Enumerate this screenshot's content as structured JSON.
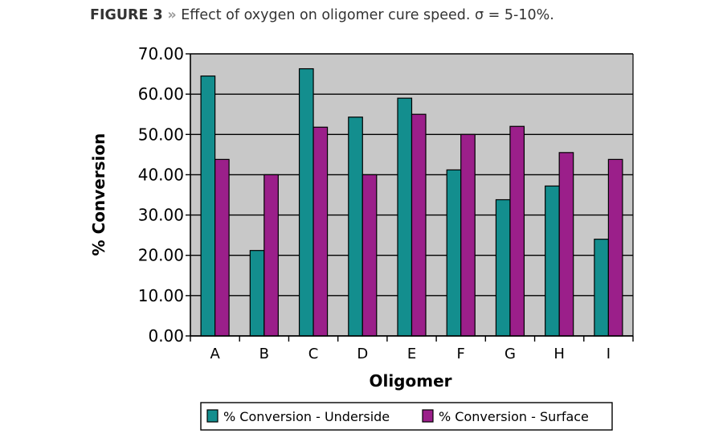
{
  "figure": {
    "label": "FIGURE 3",
    "separator": "»",
    "caption": "Effect of oxygen on oligomer cure speed. σ = 5-10%."
  },
  "chart_data": {
    "type": "bar",
    "categories": [
      "A",
      "B",
      "C",
      "D",
      "E",
      "F",
      "G",
      "H",
      "I"
    ],
    "series": [
      {
        "name": "% Conversion - Underside",
        "color": "#138e8e",
        "values": [
          64.5,
          21.2,
          66.3,
          54.3,
          59.0,
          41.2,
          33.8,
          37.2,
          24.0
        ]
      },
      {
        "name": "% Conversion - Surface",
        "color": "#9b1f8a",
        "values": [
          43.8,
          40.0,
          51.8,
          40.0,
          55.0,
          50.0,
          52.0,
          45.5,
          43.8
        ]
      }
    ],
    "xlabel": "Oligomer",
    "ylabel": "% Conversion",
    "ylim": [
      0,
      70
    ],
    "yticks": [
      "0.00",
      "10.00",
      "20.00",
      "30.00",
      "40.00",
      "50.00",
      "60.00",
      "70.00"
    ],
    "ytick_values": [
      0,
      10,
      20,
      30,
      40,
      50,
      60,
      70
    ],
    "grid": true,
    "plot_background": "#c8c8c8",
    "legend_position": "bottom"
  }
}
